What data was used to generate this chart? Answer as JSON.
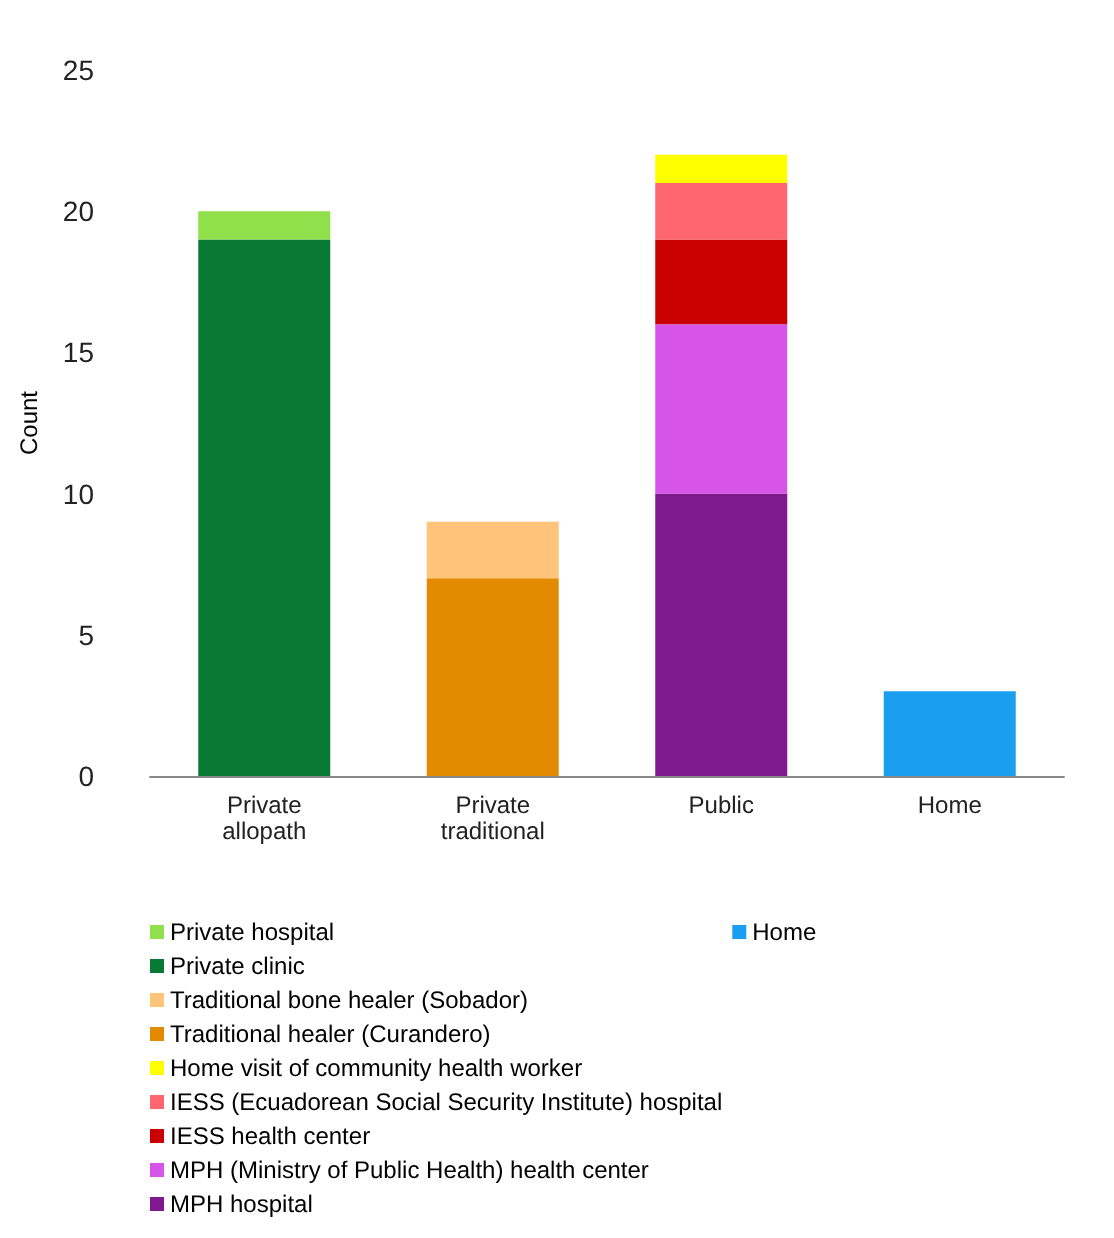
{
  "chart_data": {
    "type": "bar",
    "stacked": true,
    "ylabel": "Count",
    "categories": [
      "Private\nallopath",
      "Private\ntraditional",
      "Public",
      "Home"
    ],
    "ylim": [
      0,
      25
    ],
    "yticks": [
      0,
      5,
      10,
      15,
      20,
      25
    ],
    "grid": false,
    "legend": "bottom",
    "series": [
      {
        "name": "Home",
        "color": "#1a9ff0",
        "values": [
          null,
          null,
          null,
          3
        ]
      },
      {
        "name": "MPH hospital",
        "color": "#7e1a8e",
        "values": [
          null,
          null,
          10,
          null
        ]
      },
      {
        "name": "MPH (Ministry of Public Health) health center",
        "color": "#d655e8",
        "values": [
          null,
          null,
          6,
          null
        ]
      },
      {
        "name": "IESS health center",
        "color": "#c80000",
        "values": [
          null,
          null,
          3,
          null
        ]
      },
      {
        "name": "IESS (Ecuadorean Social Security Institute) hospital",
        "color": "#ff6670",
        "values": [
          null,
          null,
          2,
          null
        ]
      },
      {
        "name": "Home visit of community health worker",
        "color": "#ffff00",
        "values": [
          null,
          null,
          1,
          null
        ]
      },
      {
        "name": "Traditional healer (Curandero)",
        "color": "#e48a00",
        "values": [
          null,
          7,
          null,
          null
        ]
      },
      {
        "name": "Traditional bone healer (Sobador)",
        "color": "#ffc37a",
        "values": [
          null,
          2,
          null,
          null
        ]
      },
      {
        "name": "Private clinic",
        "color": "#097a34",
        "values": [
          19,
          null,
          null,
          null
        ]
      },
      {
        "name": "Private hospital",
        "color": "#8fe04a",
        "values": [
          1,
          null,
          null,
          null
        ]
      }
    ]
  }
}
